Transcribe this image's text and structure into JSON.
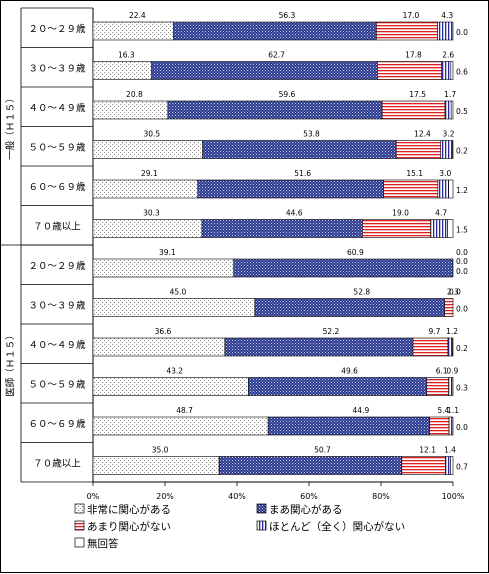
{
  "chart_data": {
    "type": "bar",
    "orientation": "horizontal",
    "stacked": true,
    "groups": [
      {
        "name": "一般（Ｈ１５）",
        "categories": [
          "２０～２９歳",
          "３０～３９歳",
          "４０～４９歳",
          "５０～５９歳",
          "６０～６９歳",
          "７０歳以上"
        ]
      },
      {
        "name": "医師（Ｈ１５）",
        "categories": [
          "２０～２９歳",
          "３０～３９歳",
          "４０～４９歳",
          "５０～５９歳",
          "６０～６９歳",
          "７０歳以上"
        ]
      }
    ],
    "series": [
      {
        "name": "非常に関心がある",
        "values": [
          22.4,
          16.3,
          20.8,
          30.5,
          29.1,
          30.3,
          39.1,
          45.0,
          36.6,
          43.2,
          48.7,
          35.0
        ],
        "labels": [
          "22.4",
          "16.3",
          "20.8",
          "30.5",
          "29.1",
          "30.3",
          "39.1",
          "45.0",
          "36.6",
          "43.2",
          "48.7",
          "35.0"
        ]
      },
      {
        "name": "まあ関心がある",
        "values": [
          56.3,
          62.7,
          59.6,
          53.8,
          51.6,
          44.6,
          60.9,
          52.8,
          52.2,
          49.6,
          44.9,
          50.7
        ],
        "labels": [
          "56.3",
          "62.7",
          "59.6",
          "53.8",
          "51.6",
          "44.6",
          "60.9",
          "52.8",
          "52.2",
          "49.6",
          "44.9",
          "50.7"
        ]
      },
      {
        "name": "あまり関心がない",
        "values": [
          17.0,
          17.8,
          17.5,
          12.4,
          15.1,
          19.0,
          0.0,
          2.3,
          9.7,
          6.1,
          5.4,
          12.1
        ],
        "labels": [
          "17.0",
          "17.8",
          "17.5",
          "12.4",
          "15.1",
          "19.0",
          "0.0",
          "2.3",
          "9.7",
          "6.1",
          "5.4",
          "12.1"
        ]
      },
      {
        "name": "ほとんど（全く）関心がない",
        "values": [
          4.3,
          2.6,
          1.7,
          3.2,
          3.0,
          4.7,
          0.0,
          0.0,
          1.2,
          0.9,
          1.1,
          1.4
        ],
        "labels": [
          "4.3",
          "2.6",
          "1.7",
          "3.2",
          "3.0",
          "4.7",
          "0.0",
          "0.0",
          "1.2",
          "0.9",
          "1.1",
          "1.4"
        ]
      },
      {
        "name": "無回答",
        "values": [
          0.0,
          0.6,
          0.5,
          0.2,
          1.2,
          1.5,
          0.0,
          0.0,
          0.2,
          0.3,
          0.0,
          0.7
        ],
        "labels": [
          "0.0",
          "0.6",
          "0.5",
          "0.2",
          "1.2",
          "1.5",
          "0.0",
          "0.0",
          "0.2",
          "0.3",
          "0.0",
          "0.7"
        ]
      }
    ],
    "xaxis": {
      "ticks": [
        "0%",
        "20%",
        "40%",
        "60%",
        "80%",
        "100%"
      ],
      "range": [
        0,
        100
      ]
    },
    "legend": {
      "position": "bottom"
    },
    "colors": {
      "非常に関心がある": "#ffffff",
      "まあ関心がある": "#5a6ab0",
      "あまり関心がない": "#e06060",
      "ほとんど（全く）関心がない": "#7a7ad0",
      "無回答": "#ffffff"
    }
  }
}
